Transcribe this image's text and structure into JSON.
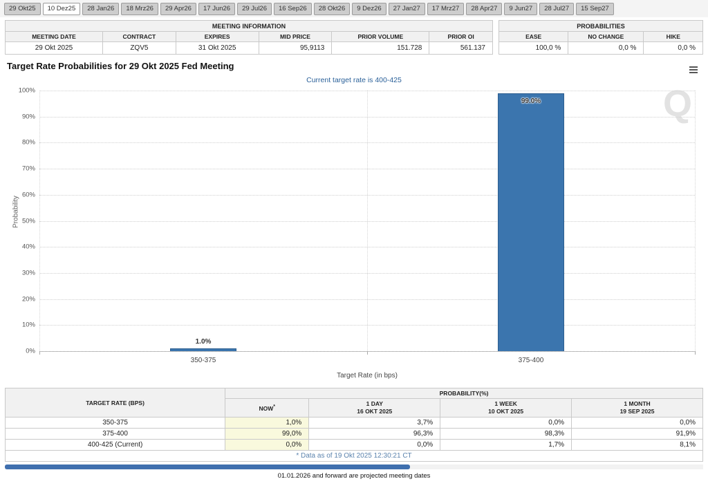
{
  "tabs": {
    "items": [
      "29 Okt25",
      "10 Dez25",
      "28 Jan26",
      "18 Mrz26",
      "29 Apr26",
      "17 Jun26",
      "29 Jul26",
      "16 Sep26",
      "28 Okt26",
      "9 Dez26",
      "27 Jan27",
      "17 Mrz27",
      "28 Apr27",
      "9 Jun27",
      "28 Jul27",
      "15 Sep27"
    ],
    "selected_index": 1
  },
  "meeting_info": {
    "title": "MEETING INFORMATION",
    "headers": [
      "MEETING DATE",
      "CONTRACT",
      "EXPIRES",
      "MID PRICE",
      "PRIOR VOLUME",
      "PRIOR OI"
    ],
    "row": [
      "29 Okt 2025",
      "ZQV5",
      "31 Okt 2025",
      "95,9113",
      "151.728",
      "561.137"
    ]
  },
  "probabilities_summary": {
    "title": "PROBABILITIES",
    "headers": [
      "EASE",
      "NO CHANGE",
      "HIKE"
    ],
    "row": [
      "100,0 %",
      "0,0 %",
      "0,0 %"
    ]
  },
  "chart_data": {
    "type": "bar",
    "title": "Target Rate Probabilities for 29 Okt 2025 Fed Meeting",
    "subtitle": "Current target rate is 400-425",
    "categories": [
      "350-375",
      "375-400"
    ],
    "values": [
      1.0,
      99.0
    ],
    "bar_labels": [
      "1.0%",
      "99.0%"
    ],
    "xlabel": "Target Rate (in bps)",
    "ylabel": "Probability",
    "ylim": [
      0,
      100
    ],
    "ytick_labels_top_down": [
      "100%",
      "90%",
      "80%",
      "70%",
      "60%",
      "50%",
      "40%",
      "30%",
      "20%",
      "10%",
      "0%"
    ],
    "grid": true,
    "legend": "none",
    "bar_color": "#3b75ae",
    "watermark": "Q"
  },
  "bottom_table": {
    "rate_header": "TARGET RATE (BPS)",
    "group_header": "PROBABILITY(%)",
    "columns": [
      {
        "line1": "NOW",
        "sup": "*",
        "line2": ""
      },
      {
        "line1": "1 DAY",
        "sup": "",
        "line2": "16 OKT 2025"
      },
      {
        "line1": "1 WEEK",
        "sup": "",
        "line2": "10 OKT 2025"
      },
      {
        "line1": "1 MONTH",
        "sup": "",
        "line2": "19 SEP 2025"
      }
    ],
    "rows": [
      {
        "rate": "350-375",
        "now": "1,0%",
        "day": "3,7%",
        "week": "0,0%",
        "month": "0,0%"
      },
      {
        "rate": "375-400",
        "now": "99,0%",
        "day": "96,3%",
        "week": "98,3%",
        "month": "91,9%"
      },
      {
        "rate": "400-425 (Current)",
        "now": "0,0%",
        "day": "0,0%",
        "week": "1,7%",
        "month": "8,1%"
      }
    ],
    "footnote": "* Data as of 19 Okt 2025 12:30:21 CT"
  },
  "footer": {
    "note": "01.01.2026 and forward are projected meeting dates"
  },
  "colors": {
    "bar_blue": "#3b75ae",
    "subtitle_blue": "#2a6099",
    "now_column_yellow": "#f9f9dd",
    "scrollbar_blue": "#3f6fae"
  }
}
